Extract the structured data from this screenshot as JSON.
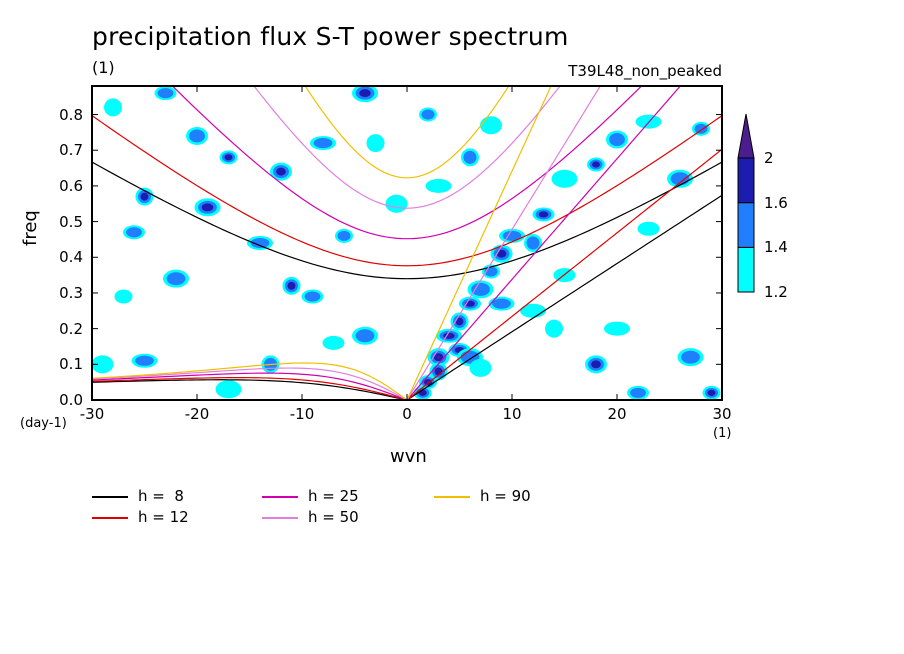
{
  "chart_data": {
    "type": "heatmap",
    "title": "precipitation flux S-T power spectrum",
    "subtitle_left": "(1)",
    "subtitle_right": "T39L48_non_peaked",
    "xlabel": "wvn",
    "ylabel": "freq",
    "x_unit": "(1)",
    "y_unit": "(day-1)",
    "xlim": [
      -30,
      30
    ],
    "ylim": [
      0,
      0.88
    ],
    "x_ticks": [
      "-30",
      "-20",
      "-10",
      "0",
      "10",
      "20",
      "30"
    ],
    "y_ticks": [
      "0.0",
      "0.1",
      "0.2",
      "0.3",
      "0.4",
      "0.5",
      "0.6",
      "0.7",
      "0.8"
    ],
    "colorbar": {
      "levels": [
        1.2,
        1.4,
        1.6,
        2.0
      ],
      "labels": [
        "1.2",
        "1.4",
        "1.6",
        "2"
      ],
      "colors": [
        "#00ffff",
        "#1f7fff",
        "#1c1cae",
        "#4b1d8f"
      ]
    },
    "blobs": [
      {
        "x": 2,
        "y": 0.05,
        "level": 4
      },
      {
        "x": 3,
        "y": 0.12,
        "level": 4
      },
      {
        "x": 4,
        "y": 0.18,
        "level": 4
      },
      {
        "x": 5,
        "y": 0.22,
        "level": 3
      },
      {
        "x": 6,
        "y": 0.27,
        "level": 3
      },
      {
        "x": 7,
        "y": 0.31,
        "level": 2
      },
      {
        "x": 8,
        "y": 0.36,
        "level": 2
      },
      {
        "x": 9,
        "y": 0.41,
        "level": 3
      },
      {
        "x": 10,
        "y": 0.46,
        "level": 2
      },
      {
        "x": 3,
        "y": 0.08,
        "level": 3
      },
      {
        "x": 5,
        "y": 0.14,
        "level": 3
      },
      {
        "x": 6,
        "y": 0.12,
        "level": 2
      },
      {
        "x": 1.5,
        "y": 0.02,
        "level": 3
      },
      {
        "x": 7,
        "y": 0.09,
        "level": 1
      },
      {
        "x": 9,
        "y": 0.27,
        "level": 2
      },
      {
        "x": 12,
        "y": 0.44,
        "level": 2
      },
      {
        "x": 13,
        "y": 0.52,
        "level": 3
      },
      {
        "x": 15,
        "y": 0.62,
        "level": 1
      },
      {
        "x": 18,
        "y": 0.66,
        "level": 3
      },
      {
        "x": 20,
        "y": 0.73,
        "level": 2
      },
      {
        "x": 23,
        "y": 0.78,
        "level": 1
      },
      {
        "x": -28,
        "y": 0.82,
        "level": 1
      },
      {
        "x": -23,
        "y": 0.86,
        "level": 2
      },
      {
        "x": -19,
        "y": 0.54,
        "level": 3
      },
      {
        "x": -17,
        "y": 0.68,
        "level": 3
      },
      {
        "x": -12,
        "y": 0.64,
        "level": 3
      },
      {
        "x": -14,
        "y": 0.44,
        "level": 2
      },
      {
        "x": -11,
        "y": 0.32,
        "level": 3
      },
      {
        "x": -9,
        "y": 0.29,
        "level": 2
      },
      {
        "x": -4,
        "y": 0.86,
        "level": 3
      },
      {
        "x": 2,
        "y": 0.8,
        "level": 2
      },
      {
        "x": 8,
        "y": 0.77,
        "level": 1
      },
      {
        "x": 12,
        "y": 0.25,
        "level": 1
      },
      {
        "x": -25,
        "y": 0.57,
        "level": 3
      },
      {
        "x": -26,
        "y": 0.47,
        "level": 2
      },
      {
        "x": -22,
        "y": 0.34,
        "level": 2
      },
      {
        "x": -27,
        "y": 0.29,
        "level": 1
      },
      {
        "x": -29,
        "y": 0.1,
        "level": 1
      },
      {
        "x": -25,
        "y": 0.11,
        "level": 2
      },
      {
        "x": -13,
        "y": 0.1,
        "level": 2
      },
      {
        "x": -7,
        "y": 0.16,
        "level": 1
      },
      {
        "x": -4,
        "y": 0.18,
        "level": 2
      },
      {
        "x": -6,
        "y": 0.46,
        "level": 2
      },
      {
        "x": -1,
        "y": 0.55,
        "level": 1
      },
      {
        "x": 3,
        "y": 0.6,
        "level": 1
      },
      {
        "x": 6,
        "y": 0.68,
        "level": 2
      },
      {
        "x": 23,
        "y": 0.48,
        "level": 1
      },
      {
        "x": 26,
        "y": 0.62,
        "level": 2
      },
      {
        "x": 28,
        "y": 0.76,
        "level": 2
      },
      {
        "x": 18,
        "y": 0.1,
        "level": 3
      },
      {
        "x": 20,
        "y": 0.2,
        "level": 1
      },
      {
        "x": 14,
        "y": 0.2,
        "level": 1
      },
      {
        "x": 22,
        "y": 0.02,
        "level": 2
      },
      {
        "x": 27,
        "y": 0.12,
        "level": 2
      },
      {
        "x": 29,
        "y": 0.02,
        "level": 3
      },
      {
        "x": -20,
        "y": 0.74,
        "level": 2
      },
      {
        "x": -8,
        "y": 0.72,
        "level": 2
      },
      {
        "x": -3,
        "y": 0.72,
        "level": 1
      },
      {
        "x": 15,
        "y": 0.35,
        "level": 1
      },
      {
        "x": -17,
        "y": 0.03,
        "level": 1
      }
    ],
    "series": [
      {
        "name": "h =  8",
        "color": "#000000",
        "h": 8
      },
      {
        "name": "h = 12",
        "color": "#e00000",
        "h": 12
      },
      {
        "name": "h = 25",
        "color": "#d000b0",
        "h": 25
      },
      {
        "name": "h = 50",
        "color": "#e080e0",
        "h": 50
      },
      {
        "name": "h = 90",
        "color": "#f0c000",
        "h": 90
      }
    ]
  }
}
